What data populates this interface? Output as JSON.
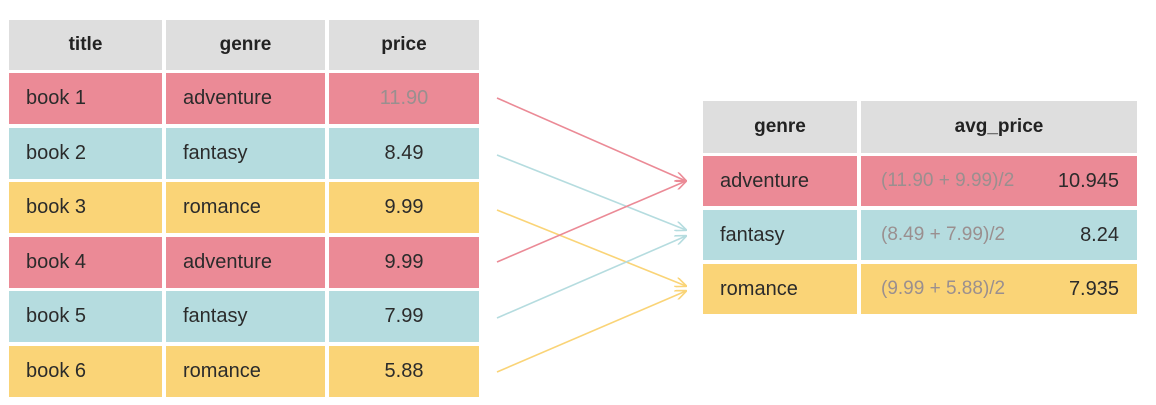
{
  "colors": {
    "adventure": "#eb8a96",
    "fantasy": "#b5dcdf",
    "romance": "#fad477",
    "header": "#dedede"
  },
  "source_table": {
    "headers": [
      "title",
      "genre",
      "price"
    ],
    "rows": [
      {
        "title": "book 1",
        "genre": "adventure",
        "price": "11.90"
      },
      {
        "title": "book 2",
        "genre": "fantasy",
        "price": "8.49"
      },
      {
        "title": "book 3",
        "genre": "romance",
        "price": "9.99"
      },
      {
        "title": "book 4",
        "genre": "adventure",
        "price": "9.99"
      },
      {
        "title": "book 5",
        "genre": "fantasy",
        "price": "7.99"
      },
      {
        "title": "book 6",
        "genre": "romance",
        "price": "5.88"
      }
    ]
  },
  "result_table": {
    "headers": [
      "genre",
      "avg_price"
    ],
    "rows": [
      {
        "genre": "adventure",
        "expr": "(11.90 + 9.99)/2",
        "avg": "10.945"
      },
      {
        "genre": "fantasy",
        "expr": "(8.49 + 7.99)/2",
        "avg": "8.24"
      },
      {
        "genre": "romance",
        "expr": "(9.99 + 5.88)/2",
        "avg": "7.935"
      }
    ]
  }
}
